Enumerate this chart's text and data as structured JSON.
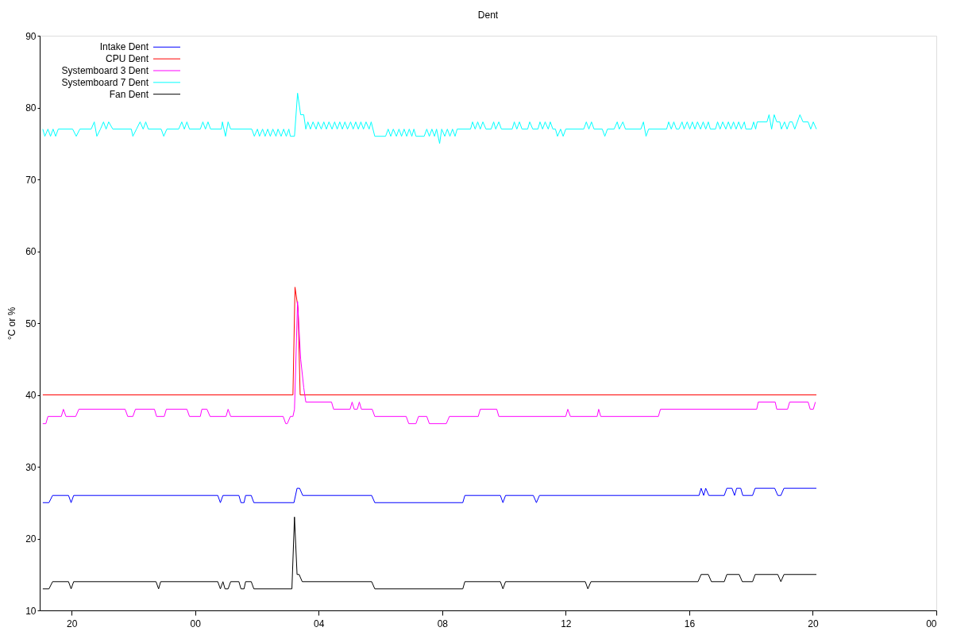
{
  "chart_data": {
    "type": "line",
    "title": "Dent",
    "ylabel": "°C or %",
    "xlim": [
      "2000-01-01T18:58",
      "2000-01-03T00:00"
    ],
    "xticks": [
      {
        "value": "2000-01-01T20:00",
        "label": "20"
      },
      {
        "value": "2000-01-02T00:00",
        "label": "00"
      },
      {
        "value": "2000-01-02T04:00",
        "label": "04"
      },
      {
        "value": "2000-01-02T08:00",
        "label": "08"
      },
      {
        "value": "2000-01-02T12:00",
        "label": "12"
      },
      {
        "value": "2000-01-02T16:00",
        "label": "16"
      },
      {
        "value": "2000-01-02T20:00",
        "label": "20"
      },
      {
        "value": "2000-01-03T00:00",
        "label": "00"
      }
    ],
    "ylim": [
      10,
      90
    ],
    "yticks": [
      10,
      20,
      30,
      40,
      50,
      60,
      70,
      80,
      90
    ],
    "legend": "top left",
    "line_style": "solid",
    "series": [
      {
        "name": "Intake Dent",
        "color": "#0000ff",
        "x": [
          "2000-01-01T19:04",
          "2000-01-01T19:16",
          "2000-01-01T19:23",
          "2000-01-01T19:54",
          "2000-01-01T19:59",
          "2000-01-01T20:04",
          "2000-01-02T00:44",
          "2000-01-02T00:49",
          "2000-01-02T00:54",
          "2000-01-02T01:25",
          "2000-01-02T01:29",
          "2000-01-02T01:35",
          "2000-01-02T01:38",
          "2000-01-02T01:49",
          "2000-01-02T01:54",
          "2000-01-02T03:12",
          "2000-01-02T03:18",
          "2000-01-02T03:23",
          "2000-01-02T03:29",
          "2000-01-02T05:43",
          "2000-01-02T05:49",
          "2000-01-02T08:40",
          "2000-01-02T08:44",
          "2000-01-02T09:53",
          "2000-01-02T09:58",
          "2000-01-02T10:03",
          "2000-01-02T10:57",
          "2000-01-02T11:03",
          "2000-01-02T11:09",
          "2000-01-02T16:19",
          "2000-01-02T16:23",
          "2000-01-02T16:28",
          "2000-01-02T16:32",
          "2000-01-02T16:38",
          "2000-01-02T17:08",
          "2000-01-02T17:13",
          "2000-01-02T17:23",
          "2000-01-02T17:28",
          "2000-01-02T17:32",
          "2000-01-02T17:40",
          "2000-01-02T17:44",
          "2000-01-02T18:03",
          "2000-01-02T18:08",
          "2000-01-02T18:46",
          "2000-01-02T18:52",
          "2000-01-02T18:58",
          "2000-01-02T19:04",
          "2000-01-02T20:07"
        ],
        "values": [
          25,
          25,
          26,
          26,
          25,
          26,
          26,
          25,
          26,
          26,
          25,
          25,
          26,
          26,
          25,
          25,
          27,
          27,
          26,
          26,
          25,
          25,
          26,
          26,
          25,
          26,
          26,
          25,
          26,
          26,
          27,
          26,
          27,
          26,
          26,
          27,
          27,
          26,
          27,
          27,
          26,
          26,
          27,
          27,
          26,
          26,
          27,
          27
        ]
      },
      {
        "name": "CPU Dent",
        "color": "#ff0000",
        "x": [
          "2000-01-01T19:04",
          "2000-01-02T03:10",
          "2000-01-02T03:14",
          "2000-01-02T03:20",
          "2000-01-02T03:24",
          "2000-01-02T20:07"
        ],
        "values": [
          40,
          40,
          55,
          52,
          40,
          40
        ]
      },
      {
        "name": "Systemboard 3 Dent",
        "color": "#ff00ff",
        "x": [
          "2000-01-01T19:04",
          "2000-01-01T19:10",
          "2000-01-01T19:14",
          "2000-01-01T19:40",
          "2000-01-01T19:44",
          "2000-01-01T19:49",
          "2000-01-01T20:08",
          "2000-01-01T20:14",
          "2000-01-01T21:44",
          "2000-01-01T21:49",
          "2000-01-01T21:59",
          "2000-01-01T22:04",
          "2000-01-01T22:41",
          "2000-01-01T22:45",
          "2000-01-01T23:00",
          "2000-01-01T23:04",
          "2000-01-01T23:44",
          "2000-01-01T23:49",
          "2000-01-02T00:10",
          "2000-01-02T00:13",
          "2000-01-02T00:23",
          "2000-01-02T00:29",
          "2000-01-02T01:00",
          "2000-01-02T01:04",
          "2000-01-02T01:09",
          "2000-01-02T02:51",
          "2000-01-02T02:56",
          "2000-01-02T02:59",
          "2000-01-02T03:05",
          "2000-01-02T03:10",
          "2000-01-02T03:13",
          "2000-01-02T03:19",
          "2000-01-02T03:25",
          "2000-01-02T03:31",
          "2000-01-02T03:35",
          "2000-01-02T04:25",
          "2000-01-02T04:29",
          "2000-01-02T05:01",
          "2000-01-02T05:05",
          "2000-01-02T05:09",
          "2000-01-02T05:15",
          "2000-01-02T05:19",
          "2000-01-02T05:23",
          "2000-01-02T05:44",
          "2000-01-02T05:49",
          "2000-01-02T06:50",
          "2000-01-02T06:55",
          "2000-01-02T07:09",
          "2000-01-02T07:14",
          "2000-01-02T07:30",
          "2000-01-02T07:35",
          "2000-01-02T08:08",
          "2000-01-02T08:14",
          "2000-01-02T09:10",
          "2000-01-02T09:14",
          "2000-01-02T09:46",
          "2000-01-02T09:50",
          "2000-01-02T12:00",
          "2000-01-02T12:04",
          "2000-01-02T12:09",
          "2000-01-02T13:01",
          "2000-01-02T13:04",
          "2000-01-02T13:08",
          "2000-01-02T15:00",
          "2000-01-02T15:04",
          "2000-01-02T18:11",
          "2000-01-02T18:14",
          "2000-01-02T18:47",
          "2000-01-02T18:50",
          "2000-01-02T19:11",
          "2000-01-02T19:15",
          "2000-01-02T19:51",
          "2000-01-02T19:55",
          "2000-01-02T20:01",
          "2000-01-02T20:05"
        ],
        "values": [
          36,
          36,
          37,
          37,
          38,
          37,
          37,
          38,
          38,
          37,
          37,
          38,
          38,
          37,
          37,
          38,
          38,
          37,
          37,
          38,
          38,
          37,
          37,
          38,
          37,
          37,
          36,
          36,
          37,
          37,
          38,
          53,
          45,
          41,
          39,
          39,
          38,
          38,
          39,
          38,
          38,
          39,
          38,
          38,
          37,
          37,
          36,
          36,
          37,
          37,
          36,
          36,
          37,
          37,
          38,
          38,
          37,
          37,
          38,
          37,
          37,
          38,
          37,
          37,
          38,
          38,
          39,
          39,
          38,
          38,
          39,
          39,
          38,
          38,
          39
        ]
      },
      {
        "name": "Systemboard 7 Dent",
        "color": "#00ffff",
        "x": [
          "2000-01-01T19:04",
          "2000-01-01T19:08",
          "2000-01-01T19:14",
          "2000-01-01T19:19",
          "2000-01-01T19:24",
          "2000-01-01T19:29",
          "2000-01-01T19:34",
          "2000-01-01T20:02",
          "2000-01-01T20:09",
          "2000-01-01T20:16",
          "2000-01-01T20:38",
          "2000-01-01T20:44",
          "2000-01-01T20:49",
          "2000-01-01T20:56",
          "2000-01-01T21:02",
          "2000-01-01T21:07",
          "2000-01-01T21:12",
          "2000-01-01T21:20",
          "2000-01-01T21:56",
          "2000-01-01T21:59",
          "2000-01-01T22:06",
          "2000-01-01T22:13",
          "2000-01-01T22:19",
          "2000-01-01T22:24",
          "2000-01-01T22:29",
          "2000-01-01T22:54",
          "2000-01-01T22:59",
          "2000-01-01T23:05",
          "2000-01-01T23:28",
          "2000-01-01T23:34",
          "2000-01-01T23:39",
          "2000-01-01T23:44",
          "2000-01-01T23:49",
          "2000-01-02T00:10",
          "2000-01-02T00:15",
          "2000-01-02T00:20",
          "2000-01-02T00:25",
          "2000-01-02T00:30",
          "2000-01-02T00:51",
          "2000-01-02T00:53",
          "2000-01-02T00:59",
          "2000-01-02T01:04",
          "2000-01-02T01:09",
          "2000-01-02T01:50",
          "2000-01-02T01:55",
          "2000-01-02T02:01",
          "2000-01-02T02:05",
          "2000-01-02T02:11",
          "2000-01-02T02:16",
          "2000-01-02T02:21",
          "2000-01-02T02:26",
          "2000-01-02T02:31",
          "2000-01-02T02:37",
          "2000-01-02T02:41",
          "2000-01-02T02:47",
          "2000-01-02T02:52",
          "2000-01-02T02:57",
          "2000-01-02T03:02",
          "2000-01-02T03:05",
          "2000-01-02T03:13",
          "2000-01-02T03:19",
          "2000-01-02T03:25",
          "2000-01-02T03:31",
          "2000-01-02T03:35",
          "2000-01-02T03:39",
          "2000-01-02T03:44",
          "2000-01-02T03:49",
          "2000-01-02T03:55",
          "2000-01-02T03:59",
          "2000-01-02T04:05",
          "2000-01-02T04:10",
          "2000-01-02T04:15",
          "2000-01-02T04:20",
          "2000-01-02T04:26",
          "2000-01-02T04:31",
          "2000-01-02T04:36",
          "2000-01-02T04:41",
          "2000-01-02T04:46",
          "2000-01-02T04:51",
          "2000-01-02T04:56",
          "2000-01-02T05:02",
          "2000-01-02T05:07",
          "2000-01-02T05:12",
          "2000-01-02T05:17",
          "2000-01-02T05:22",
          "2000-01-02T05:27",
          "2000-01-02T05:32",
          "2000-01-02T05:38",
          "2000-01-02T05:42",
          "2000-01-02T05:49",
          "2000-01-02T06:10",
          "2000-01-02T06:15",
          "2000-01-02T06:20",
          "2000-01-02T06:25",
          "2000-01-02T06:31",
          "2000-01-02T06:36",
          "2000-01-02T06:41",
          "2000-01-02T06:46",
          "2000-01-02T06:51",
          "2000-01-02T06:56",
          "2000-01-02T07:01",
          "2000-01-02T07:05",
          "2000-01-02T07:09",
          "2000-01-02T07:25",
          "2000-01-02T07:30",
          "2000-01-02T07:35",
          "2000-01-02T07:40",
          "2000-01-02T07:45",
          "2000-01-02T07:49",
          "2000-01-02T07:55",
          "2000-01-02T07:59",
          "2000-01-02T08:05",
          "2000-01-02T08:10",
          "2000-01-02T08:15",
          "2000-01-02T08:20",
          "2000-01-02T08:25",
          "2000-01-02T08:29",
          "2000-01-02T08:55",
          "2000-01-02T08:59",
          "2000-01-02T09:04",
          "2000-01-02T09:09",
          "2000-01-02T09:14",
          "2000-01-02T09:19",
          "2000-01-02T09:25",
          "2000-01-02T09:35",
          "2000-01-02T09:40",
          "2000-01-02T09:44",
          "2000-01-02T09:50",
          "2000-01-02T09:55",
          "2000-01-02T10:16",
          "2000-01-02T10:20",
          "2000-01-02T10:25",
          "2000-01-02T10:30",
          "2000-01-02T10:35",
          "2000-01-02T10:46",
          "2000-01-02T10:50",
          "2000-01-02T10:56",
          "2000-01-02T11:06",
          "2000-01-02T11:10",
          "2000-01-02T11:15",
          "2000-01-02T11:20",
          "2000-01-02T11:26",
          "2000-01-02T11:30",
          "2000-01-02T11:35",
          "2000-01-02T11:40",
          "2000-01-02T11:44",
          "2000-01-02T11:50",
          "2000-01-02T11:55",
          "2000-01-02T12:00",
          "2000-01-02T12:35",
          "2000-01-02T12:40",
          "2000-01-02T12:45",
          "2000-01-02T12:50",
          "2000-01-02T12:55",
          "2000-01-02T13:11",
          "2000-01-02T13:16",
          "2000-01-02T13:21",
          "2000-01-02T13:34",
          "2000-01-02T13:40",
          "2000-01-02T13:44",
          "2000-01-02T13:51",
          "2000-01-02T13:56",
          "2000-01-02T14:26",
          "2000-01-02T14:31",
          "2000-01-02T14:36",
          "2000-01-02T14:41",
          "2000-01-02T15:16",
          "2000-01-02T15:20",
          "2000-01-02T15:25",
          "2000-01-02T15:30",
          "2000-01-02T15:35",
          "2000-01-02T15:40",
          "2000-01-02T15:46",
          "2000-01-02T15:50",
          "2000-01-02T15:56",
          "2000-01-02T16:01",
          "2000-01-02T16:06",
          "2000-01-02T16:11",
          "2000-01-02T16:16",
          "2000-01-02T16:22",
          "2000-01-02T16:27",
          "2000-01-02T16:32",
          "2000-01-02T16:37",
          "2000-01-02T16:41",
          "2000-01-02T16:51",
          "2000-01-02T16:55",
          "2000-01-02T17:00",
          "2000-01-02T17:05",
          "2000-01-02T17:11",
          "2000-01-02T17:16",
          "2000-01-02T17:21",
          "2000-01-02T17:26",
          "2000-01-02T17:31",
          "2000-01-02T17:36",
          "2000-01-02T17:41",
          "2000-01-02T17:47",
          "2000-01-02T17:50",
          "2000-01-02T18:01",
          "2000-01-02T18:05",
          "2000-01-02T18:09",
          "2000-01-02T18:12",
          "2000-01-02T18:16",
          "2000-01-02T18:31",
          "2000-01-02T18:35",
          "2000-01-02T18:40",
          "2000-01-02T18:45",
          "2000-01-02T18:50",
          "2000-01-02T18:56",
          "2000-01-02T18:59",
          "2000-01-02T19:05",
          "2000-01-02T19:10",
          "2000-01-02T19:15",
          "2000-01-02T19:20",
          "2000-01-02T19:25",
          "2000-01-02T19:35",
          "2000-01-02T19:41",
          "2000-01-02T19:51",
          "2000-01-02T19:56",
          "2000-01-02T20:01",
          "2000-01-02T20:07"
        ],
        "values": [
          77,
          76,
          77,
          76,
          77,
          76,
          77,
          77,
          76,
          77,
          77,
          78,
          76,
          77,
          78,
          77,
          78,
          77,
          77,
          76,
          77,
          78,
          77,
          78,
          77,
          77,
          76,
          77,
          77,
          78,
          77,
          78,
          77,
          77,
          78,
          77,
          78,
          77,
          77,
          78,
          76,
          78,
          77,
          77,
          76,
          77,
          76,
          77,
          76,
          77,
          76,
          77,
          76,
          77,
          76,
          77,
          76,
          77,
          76,
          76,
          82,
          79,
          79,
          77,
          78,
          77,
          78,
          77,
          78,
          77,
          78,
          77,
          78,
          77,
          78,
          77,
          78,
          77,
          78,
          77,
          78,
          77,
          78,
          77,
          78,
          77,
          78,
          77,
          78,
          76,
          76,
          77,
          76,
          77,
          76,
          77,
          76,
          77,
          76,
          77,
          76,
          77,
          76,
          76,
          77,
          76,
          77,
          76,
          77,
          75,
          77,
          76,
          77,
          76,
          77,
          76,
          77,
          77,
          78,
          77,
          78,
          77,
          78,
          77,
          77,
          78,
          77,
          78,
          77,
          77,
          78,
          77,
          78,
          77,
          77,
          78,
          77,
          77,
          78,
          77,
          78,
          77,
          78,
          77,
          77,
          76,
          77,
          76,
          77,
          77,
          78,
          77,
          78,
          77,
          77,
          76,
          77,
          77,
          78,
          77,
          78,
          77,
          77,
          78,
          76,
          77,
          77,
          78,
          77,
          78,
          77,
          77,
          78,
          77,
          78,
          77,
          78,
          77,
          78,
          77,
          78,
          77,
          78,
          77,
          77,
          78,
          77,
          78,
          77,
          78,
          77,
          78,
          77,
          78,
          77,
          78,
          77,
          77,
          78,
          77,
          78,
          78,
          78,
          79,
          77,
          79,
          78,
          78,
          77,
          78,
          77,
          78,
          78,
          77,
          79,
          78,
          78,
          77,
          78,
          77
        ]
      },
      {
        "name": "Fan Dent",
        "color": "#000000",
        "x": [
          "2000-01-01T19:04",
          "2000-01-01T19:16",
          "2000-01-01T19:23",
          "2000-01-01T19:54",
          "2000-01-01T19:59",
          "2000-01-01T20:04",
          "2000-01-01T22:44",
          "2000-01-01T22:49",
          "2000-01-01T22:53",
          "2000-01-02T00:44",
          "2000-01-02T00:49",
          "2000-01-02T00:54",
          "2000-01-02T00:58",
          "2000-01-02T01:04",
          "2000-01-02T01:09",
          "2000-01-02T01:25",
          "2000-01-02T01:29",
          "2000-01-02T01:35",
          "2000-01-02T01:38",
          "2000-01-02T01:49",
          "2000-01-02T01:54",
          "2000-01-02T03:08",
          "2000-01-02T03:13",
          "2000-01-02T03:18",
          "2000-01-02T03:22",
          "2000-01-02T03:28",
          "2000-01-02T05:43",
          "2000-01-02T05:49",
          "2000-01-02T08:40",
          "2000-01-02T08:44",
          "2000-01-02T09:53",
          "2000-01-02T09:58",
          "2000-01-02T10:03",
          "2000-01-02T12:38",
          "2000-01-02T12:43",
          "2000-01-02T12:49",
          "2000-01-02T16:17",
          "2000-01-02T16:23",
          "2000-01-02T16:37",
          "2000-01-02T16:43",
          "2000-01-02T17:08",
          "2000-01-02T17:13",
          "2000-01-02T17:37",
          "2000-01-02T17:43",
          "2000-01-02T18:03",
          "2000-01-02T18:08",
          "2000-01-02T18:52",
          "2000-01-02T18:58",
          "2000-01-02T19:04",
          "2000-01-02T20:07"
        ],
        "values": [
          13,
          13,
          14,
          14,
          13,
          14,
          14,
          13,
          14,
          14,
          13,
          14,
          13,
          13,
          14,
          14,
          13,
          13,
          14,
          14,
          13,
          13,
          23,
          15,
          15,
          14,
          14,
          13,
          13,
          14,
          14,
          13,
          14,
          14,
          13,
          14,
          14,
          15,
          15,
          14,
          14,
          15,
          15,
          14,
          14,
          15,
          15,
          14,
          15,
          15
        ]
      }
    ]
  }
}
